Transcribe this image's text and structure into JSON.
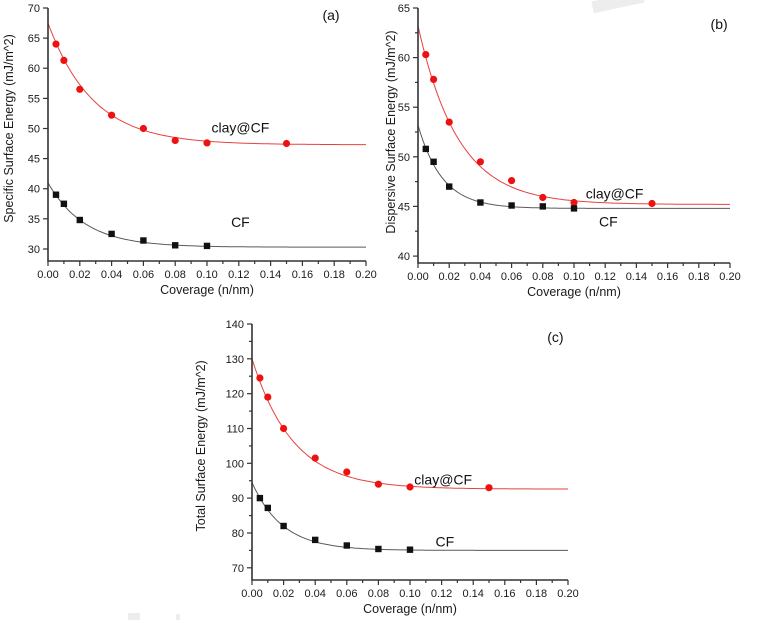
{
  "figure": {
    "background": "#ffffff",
    "axis_color": "#333333",
    "text_color": "#1a1a1a"
  },
  "chart_data": [
    {
      "id": "a",
      "type": "scatter",
      "panel_label": "(a)",
      "xlabel": "Coverage (n/nm)",
      "ylabel": "Specific Surface Energy (mJ/m^2)",
      "xlim": [
        0,
        0.2
      ],
      "ylim": [
        28,
        70
      ],
      "grid": false,
      "legend_position": "inline-annotations",
      "xticks": {
        "major": 0.02,
        "minor": 0.01,
        "decimals": 2
      },
      "yticks": {
        "start": 30,
        "end": 70,
        "major": 5,
        "minor": null
      },
      "series": [
        {
          "name": "clay@CF",
          "marker": "circle",
          "marker_color": "#ee1111",
          "line_color": "#e84040",
          "x": [
            0.005,
            0.01,
            0.02,
            0.04,
            0.06,
            0.08,
            0.1,
            0.15
          ],
          "y": [
            64.0,
            61.3,
            56.5,
            52.2,
            50.0,
            48.0,
            47.6,
            47.5
          ],
          "fit": {
            "y0": 67.5,
            "yinf": 47.3,
            "tau": 0.0283
          }
        },
        {
          "name": "CF",
          "marker": "square",
          "marker_color": "#111111",
          "line_color": "#5a5a5a",
          "x": [
            0.005,
            0.01,
            0.02,
            0.04,
            0.06,
            0.08,
            0.1
          ],
          "y": [
            39.0,
            37.5,
            34.8,
            32.5,
            31.4,
            30.6,
            30.5
          ],
          "fit": {
            "y0": 41.0,
            "yinf": 30.3,
            "tau": 0.0231
          }
        }
      ],
      "annotations": [
        {
          "text": "(a)",
          "x": 0.178,
          "y": 68.8
        },
        {
          "text": "clay@CF",
          "x": 0.121,
          "y": 50.2
        },
        {
          "text": "CF",
          "x": 0.121,
          "y": 34.5
        }
      ]
    },
    {
      "id": "b",
      "type": "scatter",
      "panel_label": "(b)",
      "xlabel": "Coverage (n/nm)",
      "ylabel": "Dispersive Surface Energy (mJ/m^2)",
      "xlim": [
        0,
        0.2
      ],
      "ylim": [
        39.3,
        65
      ],
      "grid": false,
      "legend_position": "inline-annotations",
      "xticks": {
        "major": 0.02,
        "minor": 0.01,
        "decimals": 2
      },
      "yticks": {
        "start": 40,
        "end": 65,
        "major": 5,
        "minor": 2.5
      },
      "series": [
        {
          "name": "clay@CF",
          "marker": "circle",
          "marker_color": "#ee1111",
          "line_color": "#e84040",
          "x": [
            0.005,
            0.01,
            0.02,
            0.04,
            0.06,
            0.08,
            0.1,
            0.15
          ],
          "y": [
            60.3,
            57.8,
            53.5,
            49.5,
            47.6,
            45.9,
            45.4,
            45.3
          ],
          "fit": {
            "y0": 63.2,
            "yinf": 45.2,
            "tau": 0.0258
          }
        },
        {
          "name": "CF",
          "marker": "square",
          "marker_color": "#111111",
          "line_color": "#5a5a5a",
          "x": [
            0.005,
            0.01,
            0.02,
            0.04,
            0.06,
            0.08,
            0.1
          ],
          "y": [
            50.8,
            49.5,
            47.0,
            45.4,
            45.1,
            45.0,
            44.8
          ],
          "fit": {
            "y0": 53.2,
            "yinf": 44.8,
            "tau": 0.0155
          }
        }
      ],
      "annotations": [
        {
          "text": "(b)",
          "x": 0.193,
          "y": 63.4
        },
        {
          "text": "clay@CF",
          "x": 0.126,
          "y": 46.3
        },
        {
          "text": "CF",
          "x": 0.122,
          "y": 43.5
        }
      ]
    },
    {
      "id": "c",
      "type": "scatter",
      "panel_label": "(c)",
      "xlabel": "Coverage (n/nm)",
      "ylabel": "Total Surface Energy (mJ/m^2)",
      "xlim": [
        0,
        0.2
      ],
      "ylim": [
        66.5,
        140
      ],
      "grid": false,
      "legend_position": "inline-annotations",
      "xticks": {
        "major": 0.02,
        "minor": 0.01,
        "decimals": 2
      },
      "yticks": {
        "start": 70,
        "end": 140,
        "major": 10,
        "minor": 5
      },
      "series": [
        {
          "name": "clay@CF",
          "marker": "circle",
          "marker_color": "#ee1111",
          "line_color": "#e84040",
          "x": [
            0.005,
            0.01,
            0.02,
            0.04,
            0.06,
            0.08,
            0.1,
            0.15
          ],
          "y": [
            124.5,
            119.0,
            110.0,
            101.5,
            97.5,
            94.0,
            93.2,
            93.0
          ],
          "fit": {
            "y0": 130.0,
            "yinf": 92.6,
            "tau": 0.026
          }
        },
        {
          "name": "CF",
          "marker": "square",
          "marker_color": "#111111",
          "line_color": "#5a5a5a",
          "x": [
            0.005,
            0.01,
            0.02,
            0.04,
            0.06,
            0.08,
            0.1
          ],
          "y": [
            90.0,
            87.2,
            82.0,
            78.0,
            76.4,
            75.4,
            75.2
          ],
          "fit": {
            "y0": 94.5,
            "yinf": 75.0,
            "tau": 0.0193
          }
        }
      ],
      "annotations": [
        {
          "text": "(c)",
          "x": 0.192,
          "y": 136.3
        },
        {
          "text": "clay@CF",
          "x": 0.121,
          "y": 95.3
        },
        {
          "text": "CF",
          "x": 0.122,
          "y": 77.5
        }
      ]
    }
  ]
}
